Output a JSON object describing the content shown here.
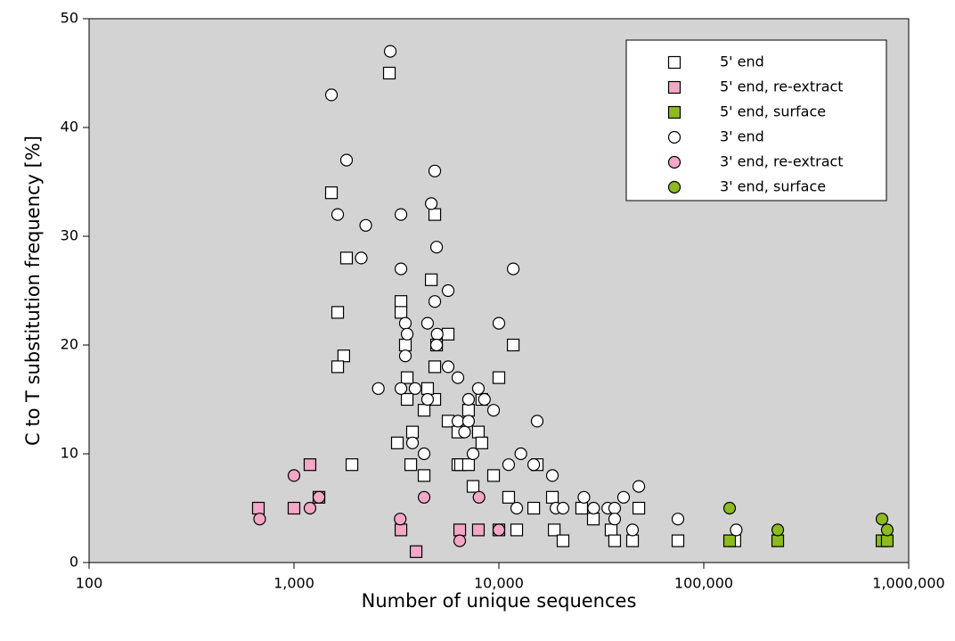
{
  "chart_data": {
    "type": "scatter",
    "xlabel": "Number of unique sequences",
    "ylabel": "C to T substitution frequency [%]",
    "xscale": "log",
    "xlim": [
      100,
      1000000
    ],
    "xticks": [
      100,
      {
        "value": 1000,
        "label": "1,000"
      },
      {
        "value": 10000,
        "label": "10,000"
      },
      {
        "value": 100000,
        "label": "100,000"
      },
      {
        "value": 1000000,
        "label": "1,000,000"
      }
    ],
    "ylim": [
      0,
      50
    ],
    "yticks": [
      0,
      10,
      20,
      30,
      40,
      50
    ],
    "legend": "top-right",
    "series": [
      {
        "name": "5' end",
        "color": "#ffffff",
        "marker": "square",
        "x": [
          2920,
          1523,
          1805,
          1634,
          1750,
          1634,
          1918,
          3327,
          3327,
          3495,
          3568,
          3568,
          3787,
          3195,
          3714,
          4677,
          4866,
          4965,
          4866,
          4866,
          4487,
          4315,
          4315,
          5653,
          5653,
          6310,
          6310,
          6500,
          7110,
          7110,
          7480,
          7940,
          8260,
          8260,
          9420,
          10000,
          11160,
          11750,
          12220,
          14790,
          15380,
          18240,
          18620,
          20560,
          25360,
          28900,
          35300,
          36730,
          44900,
          48190,
          74800,
          141800
        ],
        "values": [
          45,
          34,
          28,
          23,
          19,
          18,
          9,
          24,
          23,
          20,
          17,
          15,
          12,
          11,
          9,
          26,
          32,
          20,
          18,
          15,
          16,
          14,
          8,
          21,
          13,
          12,
          9,
          9,
          9,
          14,
          7,
          12,
          11,
          15,
          8,
          17,
          6,
          20,
          3,
          5,
          9,
          6,
          3,
          2,
          5,
          4,
          3,
          2,
          2,
          5,
          2,
          2
        ]
      },
      {
        "name": "5' end, re-extract",
        "color": "#f4a7c6",
        "marker": "square",
        "x": [
          670,
          1000,
          1197,
          1324,
          3327,
          3944,
          6440,
          7940,
          10000
        ],
        "values": [
          5,
          5,
          9,
          6,
          3,
          1,
          3,
          3,
          3
        ]
      },
      {
        "name": "5' end, surface",
        "color": "#8dbb1f",
        "marker": "square",
        "x": [
          133700,
          229600,
          741000,
          786000
        ],
        "values": [
          2,
          2,
          2,
          2
        ]
      },
      {
        "name": "3' end",
        "color": "#ffffff",
        "marker": "circle",
        "x": [
          2950,
          1523,
          1805,
          1634,
          2240,
          2130,
          2580,
          3327,
          3327,
          3495,
          3568,
          3495,
          3900,
          3327,
          3787,
          4315,
          4487,
          4677,
          4866,
          4965,
          4866,
          5000,
          4965,
          4487,
          5653,
          5653,
          6310,
          6310,
          6800,
          7110,
          7110,
          7480,
          7940,
          8500,
          9420,
          10000,
          11160,
          11750,
          12800,
          12220,
          14790,
          15380,
          18240,
          19000,
          20560,
          26000,
          29000,
          34000,
          36730,
          36730,
          40600,
          44900,
          48190,
          74800,
          144000
        ],
        "values": [
          47,
          43,
          37,
          32,
          31,
          28,
          16,
          32,
          27,
          22,
          21,
          19,
          16,
          16,
          11,
          10,
          22,
          33,
          36,
          29,
          24,
          21,
          20,
          15,
          25,
          18,
          17,
          13,
          12,
          15,
          13,
          10,
          16,
          15,
          14,
          22,
          9,
          27,
          10,
          5,
          9,
          13,
          8,
          5,
          5,
          6,
          5,
          5,
          5,
          4,
          6,
          3,
          7,
          4,
          3
        ]
      },
      {
        "name": "3' end, re-extract",
        "color": "#f4a7c6",
        "marker": "circle",
        "x": [
          680,
          1000,
          1197,
          1324,
          3300,
          4315,
          6440,
          8000,
          10000
        ],
        "values": [
          4,
          8,
          5,
          6,
          4,
          6,
          2,
          6,
          3
        ]
      },
      {
        "name": "3' end, surface",
        "color": "#8dbb1f",
        "marker": "circle",
        "x": [
          133700,
          229600,
          741000,
          786000
        ],
        "values": [
          5,
          3,
          4,
          3
        ]
      }
    ]
  }
}
